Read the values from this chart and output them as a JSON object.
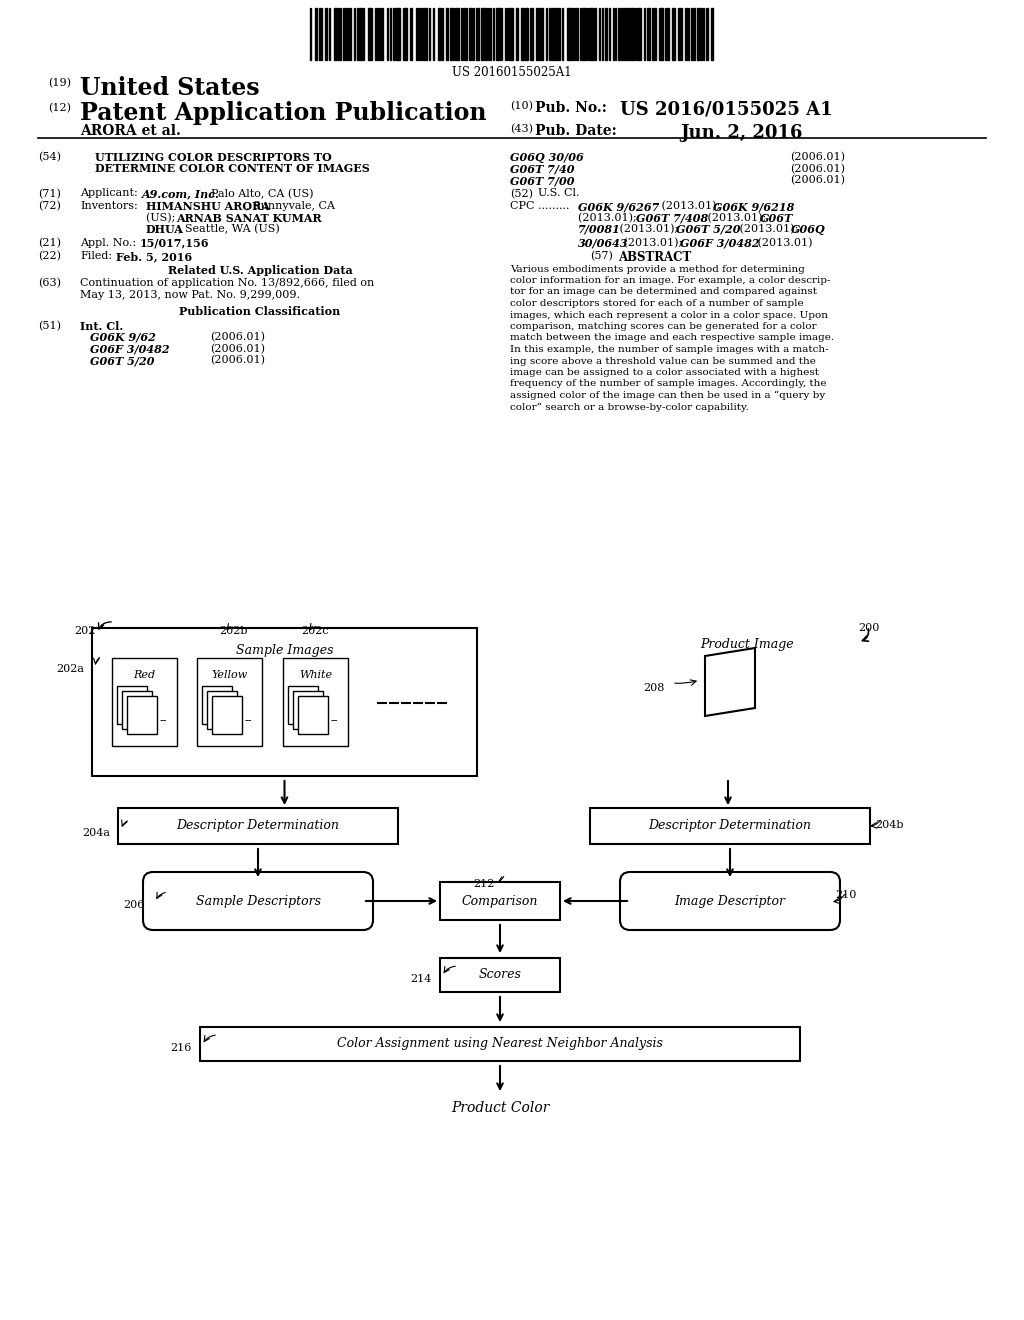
{
  "bg_color": "#ffffff",
  "title_line1": "UTILIZING COLOR DESCRIPTORS TO",
  "title_line2": "DETERMINE COLOR CONTENT OF IMAGES",
  "barcode_text": "US 20160155025A1",
  "diagram": {
    "label_200": "200",
    "label_202": "202",
    "label_202a": "202a",
    "label_202b": "202b",
    "label_202c": "202c",
    "label_204a": "204a",
    "label_204b": "204b",
    "label_206": "206",
    "label_208": "208",
    "label_210": "210",
    "label_212": "212",
    "label_214": "214",
    "label_216": "216",
    "box_sample_images_label": "Sample Images",
    "box_red_label": "Red",
    "box_yellow_label": "Yellow",
    "box_white_label": "White",
    "box_product_image_label": "Product Image",
    "box_desc_det_left_label": "Descriptor Determination",
    "box_desc_det_right_label": "Descriptor Determination",
    "box_sample_desc_label": "Sample Descriptors",
    "box_comparison_label": "Comparison",
    "box_image_desc_label": "Image Descriptor",
    "box_scores_label": "Scores",
    "box_color_assign_label": "Color Assignment using Nearest Neighbor Analysis",
    "text_product_color": "Product Color"
  }
}
